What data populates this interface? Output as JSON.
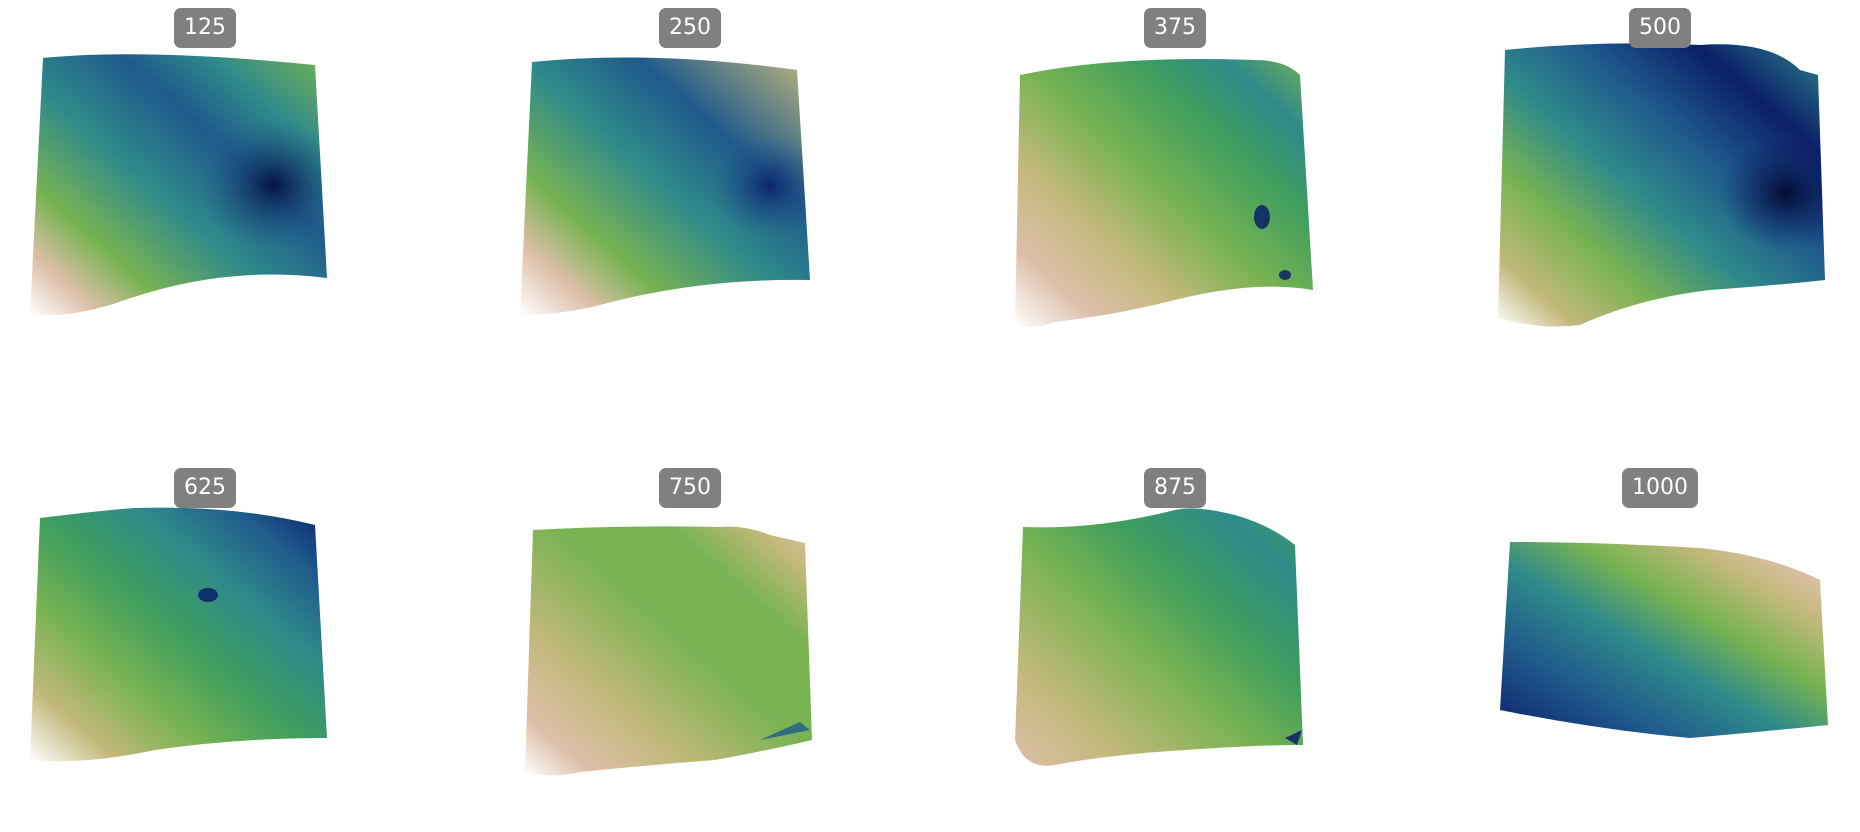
{
  "colormap": "gist_earth",
  "colormap_stops": [
    "#0b1f6a",
    "#1f5a8c",
    "#2f8a8a",
    "#3f9e5e",
    "#78b352",
    "#c2b87a",
    "#ddbfa9",
    "#ffffff"
  ],
  "panels": [
    {
      "label": "125",
      "color_low": 0.05,
      "color_high": 1.0
    },
    {
      "label": "250",
      "color_low": 0.15,
      "color_high": 1.0
    },
    {
      "label": "375",
      "color_low": 0.2,
      "color_high": 1.0
    },
    {
      "label": "500",
      "color_low": 0.0,
      "color_high": 0.95
    },
    {
      "label": "625",
      "color_low": 0.05,
      "color_high": 1.0
    },
    {
      "label": "750",
      "color_low": 0.35,
      "color_high": 1.0
    },
    {
      "label": "875",
      "color_low": 0.25,
      "color_high": 0.9
    },
    {
      "label": "1000",
      "color_low": 0.0,
      "color_high": 1.0
    }
  ]
}
